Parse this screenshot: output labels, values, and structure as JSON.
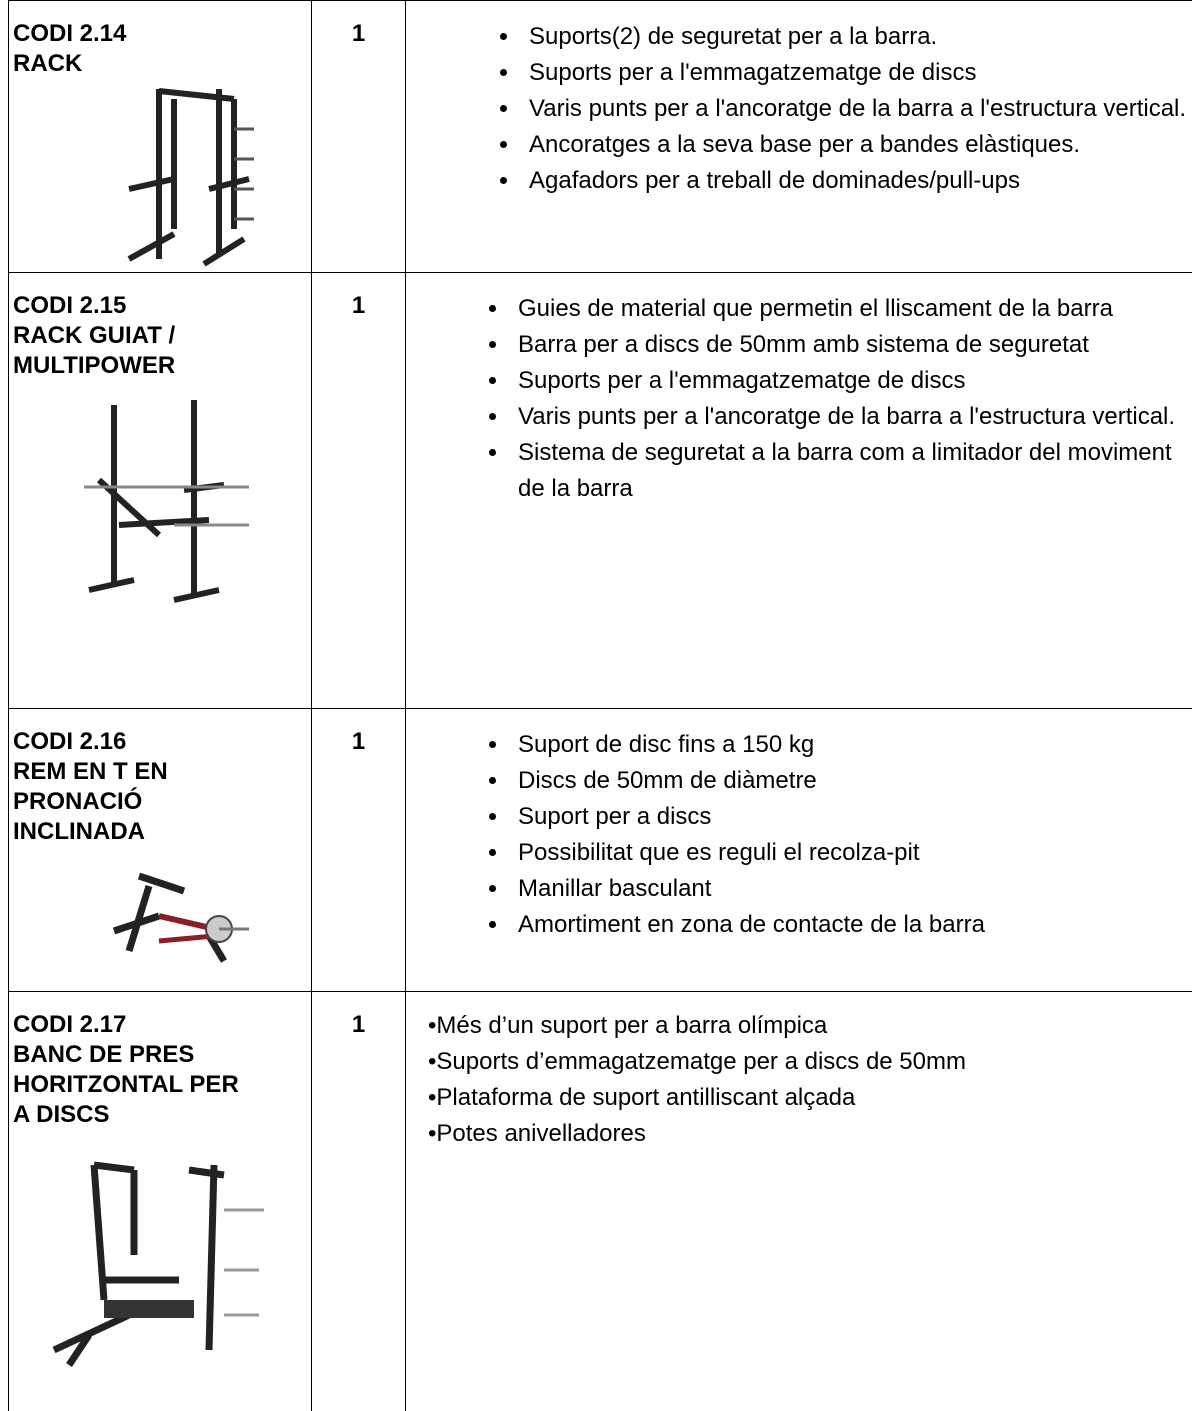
{
  "table": {
    "rows": [
      {
        "code": "CODI 2.14",
        "name_lines": [
          "RACK"
        ],
        "quantity": 1,
        "features": [
          "Suports(2) de seguretat per a la barra.",
          "Suports per a l'emmagatzematge de discs",
          "Varis punts per a l'ancoratge de la barra a l'estructura vertical.",
          "Ancoratges a la seva base per a bandes elàstiques.",
          "Agafadors per a treball de dominades/pull-ups"
        ]
      },
      {
        "code": "CODI 2.15",
        "name_lines": [
          "RACK GUIAT /",
          "MULTIPOWER"
        ],
        "quantity": 1,
        "features": [
          "Guies de material que permetin el lliscament de la barra",
          "Barra per a discs de 50mm amb sistema de seguretat",
          "Suports per a l'emmagatzematge de discs",
          "Varis punts per a l'ancoratge de la barra a l'estructura vertical.",
          "Sistema de seguretat a la barra com a limitador del moviment de la barra"
        ]
      },
      {
        "code": "CODI 2.16",
        "name_lines": [
          "REM EN T EN",
          "PRONACIÓ",
          "INCLINADA"
        ],
        "quantity": 1,
        "features": [
          "Suport de disc fins a 150 kg",
          "Discs de 50mm de diàmetre",
          "Suport per a discs",
          "Possibilitat que es reguli el recolza-pit",
          "Manillar basculant",
          "Amortiment en zona de contacte de la barra"
        ]
      },
      {
        "code": "CODI 2.17",
        "name_lines": [
          "BANC DE PRES",
          "HORITZONTAL PER",
          "A DISCS"
        ],
        "quantity": 1,
        "features": [
          "Més d’un suport per a barra olímpica",
          "Suports d’emmagatzematge per a discs de 50mm",
          "Plataforma de suport antilliscant alçada",
          "Potes anivelladores"
        ]
      }
    ]
  }
}
